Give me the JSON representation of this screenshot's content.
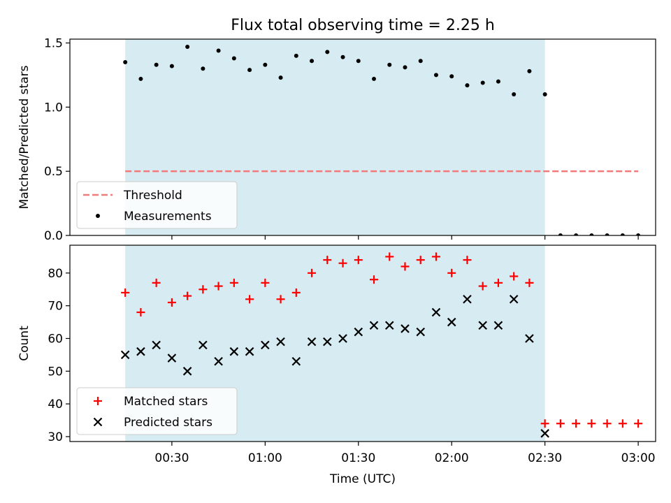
{
  "title": "Flux total observing time = 2.25 h",
  "chart_data": [
    {
      "type": "scatter",
      "ylabel": "Matched/Predicted stars",
      "ylim": [
        0,
        1.53
      ],
      "yticks": [
        0.0,
        0.5,
        1.0,
        1.5
      ],
      "ytick_labels": [
        "0.0",
        "0.5",
        "1.0",
        "1.5"
      ],
      "shaded_span_x": [
        15,
        150
      ],
      "legend": {
        "placement": "lower-left",
        "entries": [
          "Threshold",
          "Measurements"
        ]
      },
      "series": [
        {
          "name": "Threshold",
          "style": "dashed-line",
          "color": "#f27a7a",
          "x": [
            15,
            180
          ],
          "y": [
            0.5,
            0.5
          ]
        },
        {
          "name": "Measurements",
          "style": "dot",
          "color": "#000000",
          "x": [
            15,
            20,
            25,
            30,
            35,
            40,
            45,
            50,
            55,
            60,
            65,
            70,
            75,
            80,
            85,
            90,
            95,
            100,
            105,
            110,
            115,
            120,
            125,
            130,
            135,
            140,
            145,
            150,
            155,
            160,
            165,
            170,
            175,
            180
          ],
          "y": [
            1.35,
            1.22,
            1.33,
            1.32,
            1.47,
            1.3,
            1.44,
            1.38,
            1.29,
            1.33,
            1.23,
            1.4,
            1.36,
            1.43,
            1.39,
            1.36,
            1.22,
            1.33,
            1.31,
            1.36,
            1.25,
            1.24,
            1.17,
            1.19,
            1.2,
            1.1,
            1.28,
            1.1,
            0,
            0,
            0,
            0,
            0,
            0
          ]
        }
      ]
    },
    {
      "type": "scatter",
      "ylabel": "Count",
      "xlabel": "Time (UTC)",
      "ylim": [
        28.5,
        88.5
      ],
      "yticks": [
        30,
        40,
        50,
        60,
        70,
        80
      ],
      "ytick_labels": [
        "30",
        "40",
        "50",
        "60",
        "70",
        "80"
      ],
      "xticks": [
        30,
        60,
        90,
        120,
        150,
        180
      ],
      "xtick_labels": [
        "00:30",
        "01:00",
        "01:30",
        "02:00",
        "02:30",
        "03:00"
      ],
      "shaded_span_x": [
        15,
        150
      ],
      "legend": {
        "placement": "lower-left",
        "entries": [
          "Matched stars",
          "Predicted stars"
        ]
      },
      "series": [
        {
          "name": "Matched stars",
          "marker": "plus",
          "color": "#ff0000",
          "x": [
            15,
            20,
            25,
            30,
            35,
            40,
            45,
            50,
            55,
            60,
            65,
            70,
            75,
            80,
            85,
            90,
            95,
            100,
            105,
            110,
            115,
            120,
            125,
            130,
            135,
            140,
            145,
            150,
            155,
            160,
            165,
            170,
            175,
            180
          ],
          "y": [
            74,
            68,
            77,
            71,
            73,
            75,
            76,
            77,
            72,
            77,
            72,
            74,
            80,
            84,
            83,
            84,
            78,
            85,
            82,
            84,
            85,
            80,
            84,
            76,
            77,
            79,
            77,
            34,
            34,
            34,
            34,
            34,
            34,
            34
          ]
        },
        {
          "name": "Predicted stars",
          "marker": "x",
          "color": "#000000",
          "x": [
            15,
            20,
            25,
            30,
            35,
            40,
            45,
            50,
            55,
            60,
            65,
            70,
            75,
            80,
            85,
            90,
            95,
            100,
            105,
            110,
            115,
            120,
            125,
            130,
            135,
            140,
            145,
            150
          ],
          "y": [
            55,
            56,
            58,
            54,
            50,
            58,
            53,
            56,
            56,
            58,
            59,
            53,
            59,
            59,
            60,
            62,
            64,
            64,
            63,
            62,
            68,
            65,
            72,
            64,
            64,
            72,
            60,
            31
          ]
        }
      ]
    }
  ]
}
